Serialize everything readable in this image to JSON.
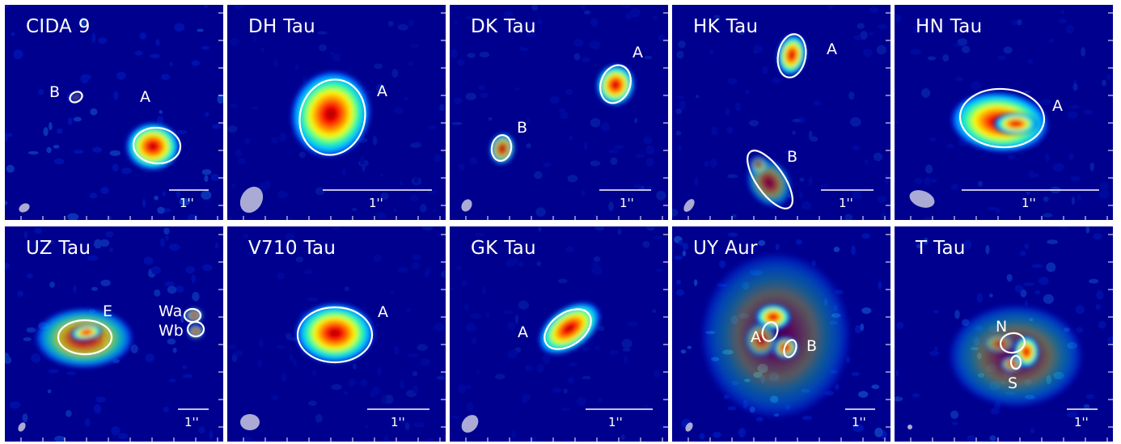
{
  "figure": {
    "scale_label": "1''",
    "panels": [
      {
        "id": "cida9",
        "name": "CIDA 9",
        "labels": [
          "B",
          "A"
        ]
      },
      {
        "id": "dhtau",
        "name": "DH Tau",
        "labels": [
          "A"
        ]
      },
      {
        "id": "dktau",
        "name": "DK Tau",
        "labels": [
          "A",
          "B"
        ]
      },
      {
        "id": "hktau",
        "name": "HK Tau",
        "labels": [
          "A",
          "B"
        ]
      },
      {
        "id": "hntau",
        "name": "HN Tau",
        "labels": [
          "A"
        ]
      },
      {
        "id": "uztau",
        "name": "UZ Tau",
        "labels": [
          "E",
          "Wa",
          "Wb"
        ]
      },
      {
        "id": "v710tau",
        "name": "V710 Tau",
        "labels": [
          "A"
        ]
      },
      {
        "id": "gktau",
        "name": "GK Tau",
        "labels": [
          "A"
        ]
      },
      {
        "id": "uyaur",
        "name": "UY Aur",
        "labels": [
          "A",
          "B"
        ]
      },
      {
        "id": "ttau",
        "name": "T Tau",
        "labels": [
          "N",
          "S"
        ]
      }
    ]
  },
  "colors": {
    "background": "#00008f",
    "colormap": "jet",
    "contour": "#ffffff",
    "beam": "#c8c8e0"
  }
}
